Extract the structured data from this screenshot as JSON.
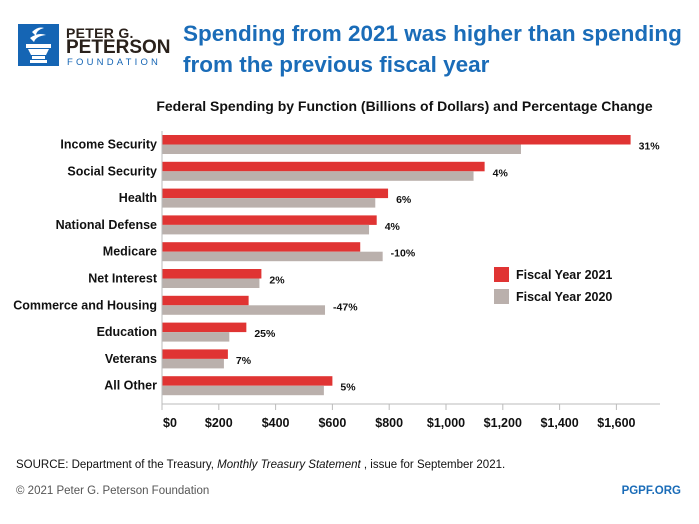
{
  "header": {
    "logo": {
      "line1": "PETER G.",
      "line2": "PETERSON",
      "line3": "FOUNDATION"
    },
    "title": "Spending from 2021 was higher than spending from the previous fiscal year"
  },
  "chart_data": {
    "type": "bar",
    "orientation": "horizontal",
    "title": "Federal Spending by Function (Billions of Dollars) and Percentage Change",
    "categories": [
      "Income Security",
      "Social Security",
      "Health",
      "National Defense",
      "Medicare",
      "Net Interest",
      "Commerce and Housing",
      "Education",
      "Veterans",
      "All Other"
    ],
    "series": [
      {
        "name": "Fiscal Year 2021",
        "color": "#e03433",
        "values": [
          1650,
          1136,
          796,
          756,
          698,
          350,
          305,
          297,
          232,
          600
        ]
      },
      {
        "name": "Fiscal Year 2020",
        "color": "#bab0ac",
        "values": [
          1264,
          1097,
          751,
          729,
          777,
          343,
          574,
          237,
          218,
          570
        ]
      }
    ],
    "pct_change_labels": [
      "31%",
      "4%",
      "6%",
      "4%",
      "-10%",
      "2%",
      "-47%",
      "25%",
      "7%",
      "5%"
    ],
    "xlim": [
      0,
      1750
    ],
    "xticks": [
      0,
      200,
      400,
      600,
      800,
      1000,
      1200,
      1400,
      1600
    ],
    "xtick_labels": [
      "$0",
      "$200",
      "$400",
      "$600",
      "$800",
      "$1,000",
      "$1,200",
      "$1,400",
      "$1,600"
    ],
    "grid": false,
    "legend": "right"
  },
  "footer": {
    "source_prefix": "SOURCE: Department of the Treasury, ",
    "source_italic": "Monthly Treasury Statement",
    "source_suffix": " , issue for September 2021.",
    "copyright": "© 2021 Peter G. Peterson Foundation",
    "site": "PGPF.ORG"
  }
}
